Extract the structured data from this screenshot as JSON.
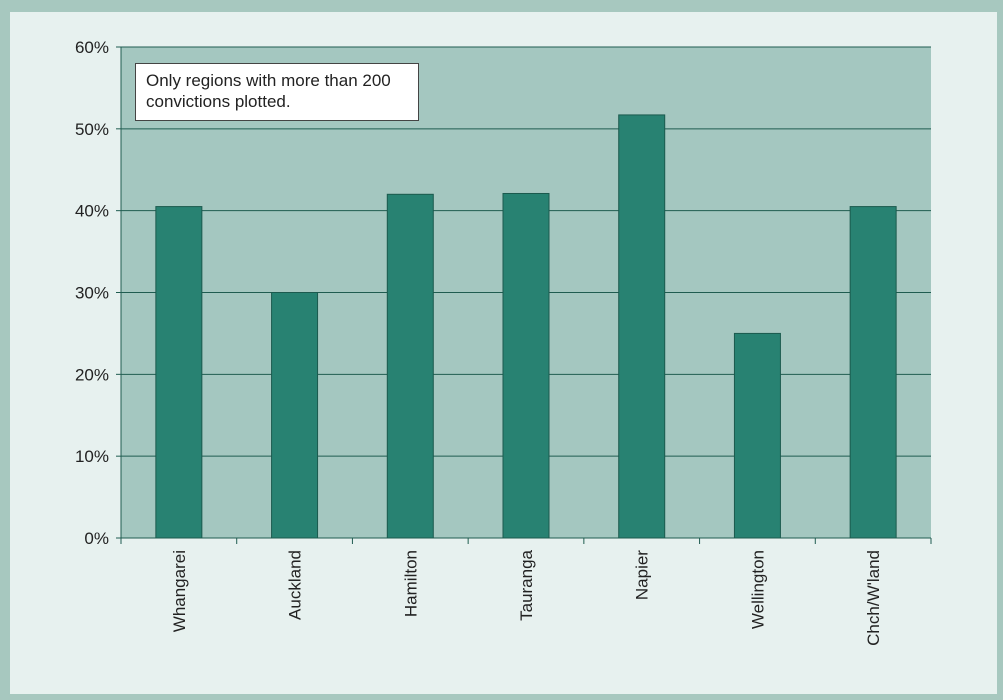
{
  "chart_data": {
    "type": "bar",
    "categories": [
      "Whangarei",
      "Auckland",
      "Hamilton",
      "Tauranga",
      "Napier",
      "Wellington",
      "Chch/W'land"
    ],
    "values": [
      40.5,
      30,
      42,
      42.1,
      51.7,
      25,
      40.5
    ],
    "title": "",
    "xlabel": "",
    "ylabel": "",
    "ylim": [
      0,
      60
    ],
    "yticks": [
      0,
      10,
      20,
      30,
      40,
      50,
      60
    ],
    "ytick_labels": [
      "0%",
      "10%",
      "20%",
      "30%",
      "40%",
      "50%",
      "60%"
    ],
    "grid": true,
    "annotation": "Only regions with more than 200 convictions plotted.",
    "colors": {
      "bar": "#288272",
      "plot_background": "#a4c7c0",
      "page_background": "#e7f1ef",
      "frame": "#a7c8bf"
    }
  }
}
